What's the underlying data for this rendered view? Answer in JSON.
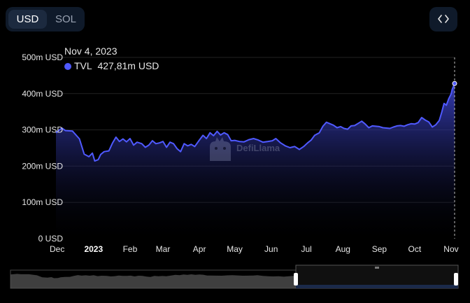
{
  "currency_toggle": {
    "options": [
      "USD",
      "SOL"
    ],
    "selected": "USD"
  },
  "tooltip": {
    "date": "Nov 4, 2023",
    "series_label": "TVL",
    "value": "427,81m USD"
  },
  "watermark_text": "DefiLlama",
  "colors": {
    "line": "#4f59ff",
    "fill_top": "#3f47d6",
    "background": "#000000"
  },
  "icons": {
    "embed": "code-brackets-icon",
    "watermark": "llama-logo-icon"
  },
  "chart_data": {
    "type": "area",
    "series": [
      {
        "name": "TVL",
        "unit": "m USD"
      }
    ],
    "ylim": [
      0,
      500
    ],
    "yticks": [
      "0 USD",
      "100m USD",
      "200m USD",
      "300m USD",
      "400m USD",
      "500m USD"
    ],
    "xticks": [
      {
        "label": "Dec",
        "x": "2022-12-01"
      },
      {
        "label": "2023",
        "x": "2023-01-01",
        "bold": true
      },
      {
        "label": "Feb",
        "x": "2023-02-01"
      },
      {
        "label": "Mar",
        "x": "2023-03-01"
      },
      {
        "label": "Apr",
        "x": "2023-04-01"
      },
      {
        "label": "May",
        "x": "2023-05-01"
      },
      {
        "label": "Jun",
        "x": "2023-06-01"
      },
      {
        "label": "Jul",
        "x": "2023-07-01"
      },
      {
        "label": "Aug",
        "x": "2023-08-01"
      },
      {
        "label": "Sep",
        "x": "2023-09-01"
      },
      {
        "label": "Oct",
        "x": "2023-10-01"
      },
      {
        "label": "Nov",
        "x": "2023-11-01"
      }
    ],
    "xlim": [
      "2022-11-30",
      "2023-11-04"
    ],
    "grid": true,
    "points": [
      [
        "2022-11-30",
        292
      ],
      [
        "2022-12-05",
        305
      ],
      [
        "2022-12-08",
        298
      ],
      [
        "2022-12-14",
        297
      ],
      [
        "2022-12-20",
        275
      ],
      [
        "2022-12-24",
        233
      ],
      [
        "2022-12-28",
        226
      ],
      [
        "2022-12-31",
        236
      ],
      [
        "2023-01-02",
        214
      ],
      [
        "2023-01-05",
        218
      ],
      [
        "2023-01-07",
        232
      ],
      [
        "2023-01-10",
        240
      ],
      [
        "2023-01-14",
        242
      ],
      [
        "2023-01-17",
        263
      ],
      [
        "2023-01-20",
        280
      ],
      [
        "2023-01-23",
        268
      ],
      [
        "2023-01-26",
        275
      ],
      [
        "2023-01-29",
        267
      ],
      [
        "2023-02-01",
        276
      ],
      [
        "2023-02-04",
        258
      ],
      [
        "2023-02-07",
        266
      ],
      [
        "2023-02-11",
        262
      ],
      [
        "2023-02-14",
        252
      ],
      [
        "2023-02-17",
        258
      ],
      [
        "2023-02-20",
        270
      ],
      [
        "2023-02-23",
        262
      ],
      [
        "2023-02-26",
        264
      ],
      [
        "2023-03-01",
        268
      ],
      [
        "2023-03-04",
        252
      ],
      [
        "2023-03-07",
        266
      ],
      [
        "2023-03-10",
        262
      ],
      [
        "2023-03-13",
        248
      ],
      [
        "2023-03-16",
        240
      ],
      [
        "2023-03-19",
        262
      ],
      [
        "2023-03-22",
        256
      ],
      [
        "2023-03-25",
        260
      ],
      [
        "2023-03-28",
        254
      ],
      [
        "2023-04-01",
        272
      ],
      [
        "2023-04-04",
        285
      ],
      [
        "2023-04-07",
        276
      ],
      [
        "2023-04-10",
        292
      ],
      [
        "2023-04-13",
        284
      ],
      [
        "2023-04-16",
        296
      ],
      [
        "2023-04-19",
        286
      ],
      [
        "2023-04-22",
        292
      ],
      [
        "2023-04-25",
        287
      ],
      [
        "2023-04-28",
        270
      ],
      [
        "2023-05-01",
        271
      ],
      [
        "2023-05-05",
        268
      ],
      [
        "2023-05-09",
        267
      ],
      [
        "2023-05-13",
        273
      ],
      [
        "2023-05-17",
        276
      ],
      [
        "2023-05-21",
        272
      ],
      [
        "2023-05-25",
        266
      ],
      [
        "2023-05-29",
        268
      ],
      [
        "2023-06-02",
        270
      ],
      [
        "2023-06-05",
        276
      ],
      [
        "2023-06-09",
        264
      ],
      [
        "2023-06-13",
        256
      ],
      [
        "2023-06-17",
        251
      ],
      [
        "2023-06-21",
        254
      ],
      [
        "2023-06-25",
        246
      ],
      [
        "2023-06-29",
        255
      ],
      [
        "2023-07-02",
        264
      ],
      [
        "2023-07-05",
        272
      ],
      [
        "2023-07-08",
        285
      ],
      [
        "2023-07-12",
        292
      ],
      [
        "2023-07-15",
        310
      ],
      [
        "2023-07-18",
        321
      ],
      [
        "2023-07-21",
        317
      ],
      [
        "2023-07-24",
        313
      ],
      [
        "2023-07-27",
        306
      ],
      [
        "2023-07-30",
        309
      ],
      [
        "2023-08-02",
        304
      ],
      [
        "2023-08-05",
        302
      ],
      [
        "2023-08-08",
        311
      ],
      [
        "2023-08-11",
        312
      ],
      [
        "2023-08-14",
        318
      ],
      [
        "2023-08-17",
        324
      ],
      [
        "2023-08-20",
        316
      ],
      [
        "2023-08-23",
        306
      ],
      [
        "2023-08-26",
        311
      ],
      [
        "2023-08-29",
        310
      ],
      [
        "2023-09-01",
        309
      ],
      [
        "2023-09-04",
        306
      ],
      [
        "2023-09-07",
        305
      ],
      [
        "2023-09-10",
        304
      ],
      [
        "2023-09-13",
        308
      ],
      [
        "2023-09-16",
        311
      ],
      [
        "2023-09-19",
        312
      ],
      [
        "2023-09-22",
        310
      ],
      [
        "2023-09-25",
        314
      ],
      [
        "2023-09-28",
        317
      ],
      [
        "2023-10-01",
        316
      ],
      [
        "2023-10-04",
        320
      ],
      [
        "2023-10-07",
        334
      ],
      [
        "2023-10-10",
        327
      ],
      [
        "2023-10-13",
        322
      ],
      [
        "2023-10-16",
        308
      ],
      [
        "2023-10-19",
        314
      ],
      [
        "2023-10-22",
        326
      ],
      [
        "2023-10-24",
        348
      ],
      [
        "2023-10-26",
        373
      ],
      [
        "2023-10-28",
        368
      ],
      [
        "2023-10-30",
        386
      ],
      [
        "2023-11-01",
        399
      ],
      [
        "2023-11-02",
        412
      ],
      [
        "2023-11-03",
        420
      ],
      [
        "2023-11-04",
        428
      ]
    ]
  }
}
